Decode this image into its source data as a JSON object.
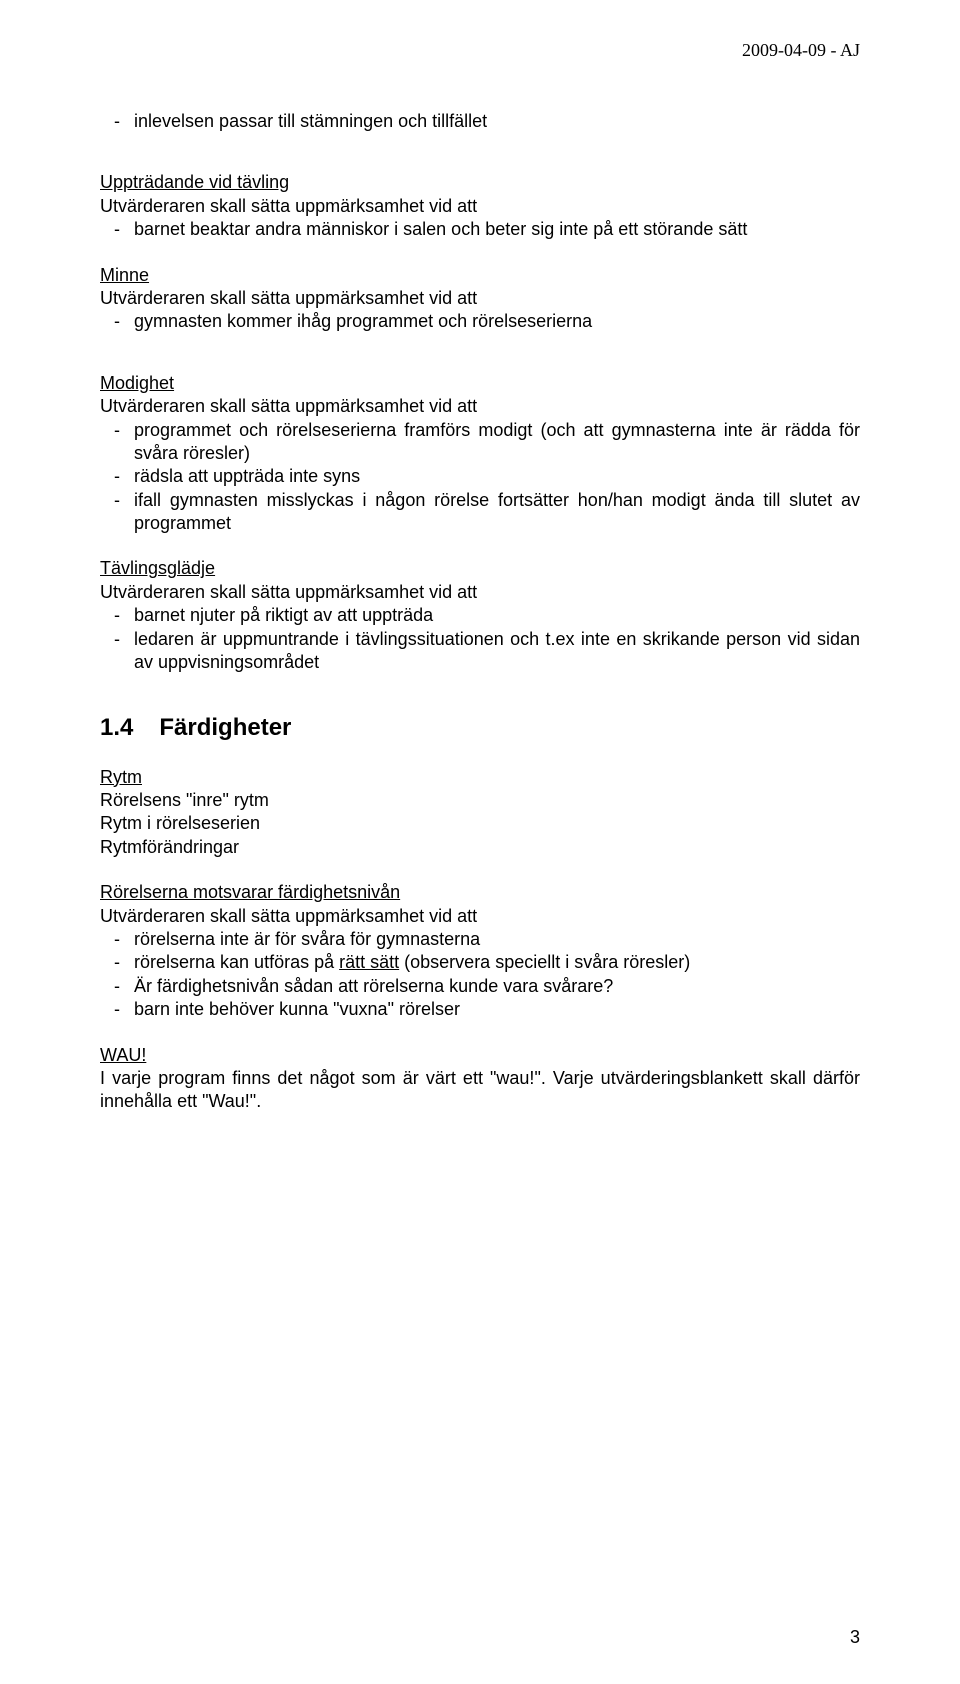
{
  "header": {
    "date": "2009-04-09 - AJ"
  },
  "intro_bullets": [
    "inlevelsen passar till stämningen och tillfället"
  ],
  "sections": {
    "upptradande": {
      "heading": "Uppträdande vid tävling",
      "intro": "Utvärderaren skall sätta uppmärksamhet vid att",
      "bullets": [
        "barnet beaktar andra människor i salen och beter sig inte på ett störande sätt"
      ]
    },
    "minne": {
      "heading": "Minne",
      "intro": "Utvärderaren skall sätta uppmärksamhet vid att",
      "bullets": [
        "gymnasten kommer ihåg programmet och rörelseserierna"
      ]
    },
    "modighet": {
      "heading": "Modighet",
      "intro": "Utvärderaren skall sätta uppmärksamhet vid att",
      "bullets": [
        "programmet och rörelseserierna framförs modigt (och att gymnasterna inte är rädda för svåra röresler)",
        "rädsla att uppträda inte syns",
        "ifall gymnasten misslyckas i någon rörelse fortsätter hon/han modigt ända till slutet av programmet"
      ]
    },
    "tavlingsgladje": {
      "heading": "Tävlingsglädje",
      "intro": "Utvärderaren skall sätta uppmärksamhet vid att",
      "bullets": [
        "barnet njuter på riktigt av att uppträda",
        "ledaren är uppmuntrande i tävlingssituationen och t.ex inte en skrikande person vid sidan av uppvisningsområdet"
      ]
    }
  },
  "fardigheter": {
    "number": "1.4",
    "title": "Färdigheter",
    "rytm": {
      "heading": "Rytm",
      "lines": [
        "Rörelsens \"inre\" rytm",
        "Rytm i rörelseserien",
        "Rytmförändringar"
      ]
    },
    "rorelserna": {
      "heading": "Rörelserna motsvarar färdighetsnivån",
      "intro": "Utvärderaren skall sätta uppmärksamhet vid att",
      "bullets": [
        "rörelserna inte är för svåra för gymnasterna",
        {
          "pre": "rörelserna kan utföras på ",
          "ul": "rätt sätt",
          "post": " (observera speciellt i svåra röresler)"
        },
        "Är färdighetsnivån sådan att rörelserna kunde vara svårare?",
        "barn inte behöver kunna \"vuxna\" rörelser"
      ]
    },
    "wau": {
      "heading": "WAU!",
      "body": "I varje program finns det något som är värt ett \"wau!\". Varje utvärderingsblankett skall därför innehålla ett \"Wau!\"."
    }
  },
  "page_number": "3"
}
